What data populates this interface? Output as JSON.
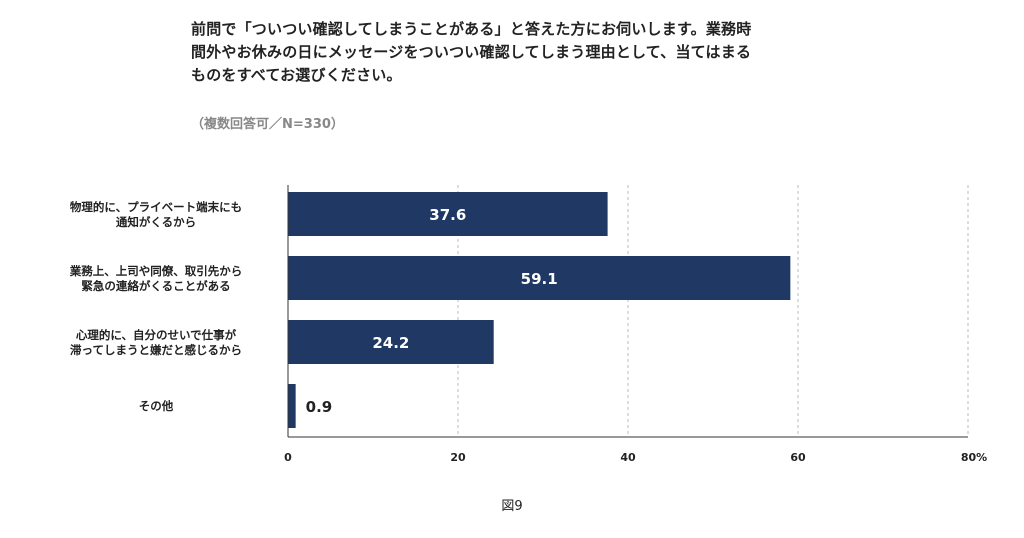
{
  "question": {
    "lines": [
      "前問で「ついつい確認してしまうことがある」と答えた方にお伺いします。業務時",
      "間外やお休みの日にメッセージをついつい確認してしまう理由として、当てはまる",
      "ものをすべてお選びください。"
    ],
    "note": "（複数回答可／N=330）"
  },
  "chart_data": {
    "type": "bar",
    "orientation": "horizontal",
    "categories": [
      [
        "物理的に、プライベート端末にも",
        "通知がくるから"
      ],
      [
        "業務上、上司や同僚、取引先から",
        "緊急の連絡がくることがある"
      ],
      [
        "心理的に、自分のせいで仕事が",
        "滞ってしまうと嫌だと感じるから"
      ],
      [
        "その他"
      ]
    ],
    "values": [
      37.6,
      59.1,
      24.2,
      0.9
    ],
    "value_labels": [
      "37.6",
      "59.1",
      "24.2",
      "0.9"
    ],
    "xlim": [
      0,
      80
    ],
    "xticks": [
      0,
      20,
      40,
      60,
      80
    ],
    "xtick_labels": [
      "0",
      "20",
      "40",
      "60",
      "80%"
    ],
    "grid": true,
    "bar_color": "#1f3864"
  },
  "caption": "図9"
}
